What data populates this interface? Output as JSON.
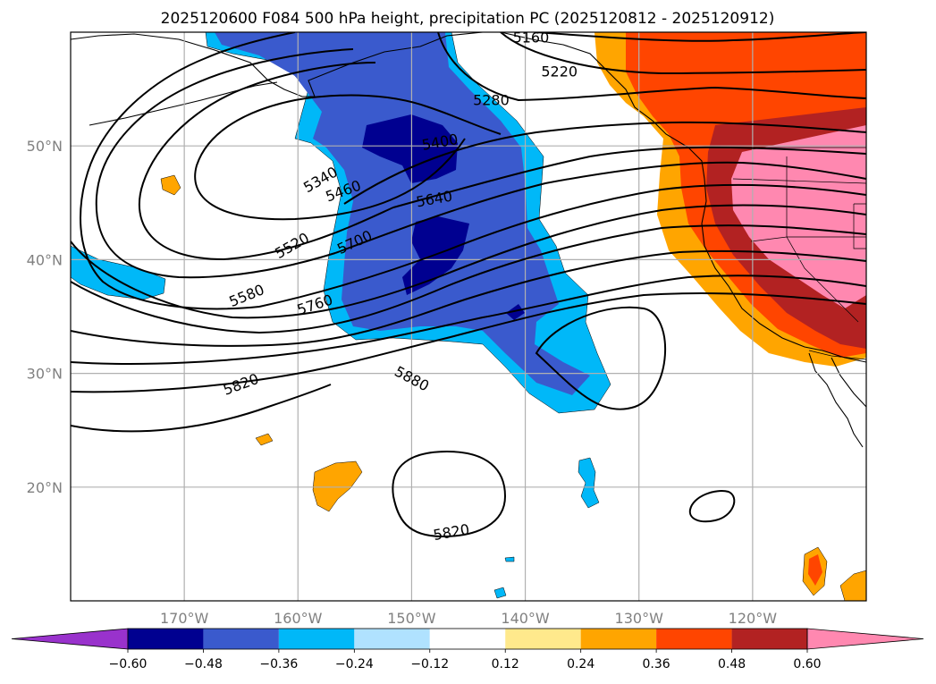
{
  "title": "2025120600 F084 500 hPa height, precipitation PC (2025120812 - 2025120912)",
  "map": {
    "lon_range": [
      -180,
      -110
    ],
    "lat_range": [
      10,
      60
    ],
    "grid": true
  },
  "lon_ticks": [
    {
      "lon": -170,
      "label": "170°W"
    },
    {
      "lon": -160,
      "label": "160°W"
    },
    {
      "lon": -150,
      "label": "150°W"
    },
    {
      "lon": -140,
      "label": "140°W"
    },
    {
      "lon": -130,
      "label": "130°W"
    },
    {
      "lon": -120,
      "label": "120°W"
    }
  ],
  "lat_ticks": [
    {
      "lat": 50,
      "label": "50°N"
    },
    {
      "lat": 40,
      "label": "40°N"
    },
    {
      "lat": 30,
      "label": "30°N"
    },
    {
      "lat": 20,
      "label": "20°N"
    }
  ],
  "colorbar": {
    "colors": [
      "#9932cc",
      "#000090",
      "#3a5acd",
      "#00b8f8",
      "#b0e2ff",
      "#ffffff",
      "#ffe98c",
      "#ffa500",
      "#ff4500",
      "#b22222",
      "#ff88b0"
    ],
    "labels": [
      "−0.60",
      "−0.48",
      "−0.36",
      "−0.24",
      "−0.12",
      "0.12",
      "0.24",
      "0.36",
      "0.48",
      "0.60"
    ]
  },
  "contour_labels": [
    {
      "text": "5160",
      "lon": -139.5,
      "lat": 59.5,
      "rot": 0
    },
    {
      "text": "5220",
      "lon": -137.0,
      "lat": 56.5,
      "rot": 0
    },
    {
      "text": "5280",
      "lon": -143.0,
      "lat": 54.0,
      "rot": 0
    },
    {
      "text": "5400",
      "lon": -147.5,
      "lat": 50.3,
      "rot": -10
    },
    {
      "text": "5340",
      "lon": -158.0,
      "lat": 47.0,
      "rot": -30
    },
    {
      "text": "5460",
      "lon": -156.0,
      "lat": 46.0,
      "rot": -20
    },
    {
      "text": "5640",
      "lon": -148.0,
      "lat": 45.3,
      "rot": -10
    },
    {
      "text": "5520",
      "lon": -160.5,
      "lat": 41.2,
      "rot": -30
    },
    {
      "text": "5700",
      "lon": -155.0,
      "lat": 41.5,
      "rot": -25
    },
    {
      "text": "5580",
      "lon": -164.5,
      "lat": 36.8,
      "rot": -22
    },
    {
      "text": "5760",
      "lon": -158.5,
      "lat": 36.0,
      "rot": -18
    },
    {
      "text": "5820",
      "lon": -165.0,
      "lat": 29.0,
      "rot": -20
    },
    {
      "text": "5880",
      "lon": -150.0,
      "lat": 29.5,
      "rot": 28
    },
    {
      "text": "5820",
      "lon": -146.5,
      "lat": 16.0,
      "rot": -10
    }
  ]
}
